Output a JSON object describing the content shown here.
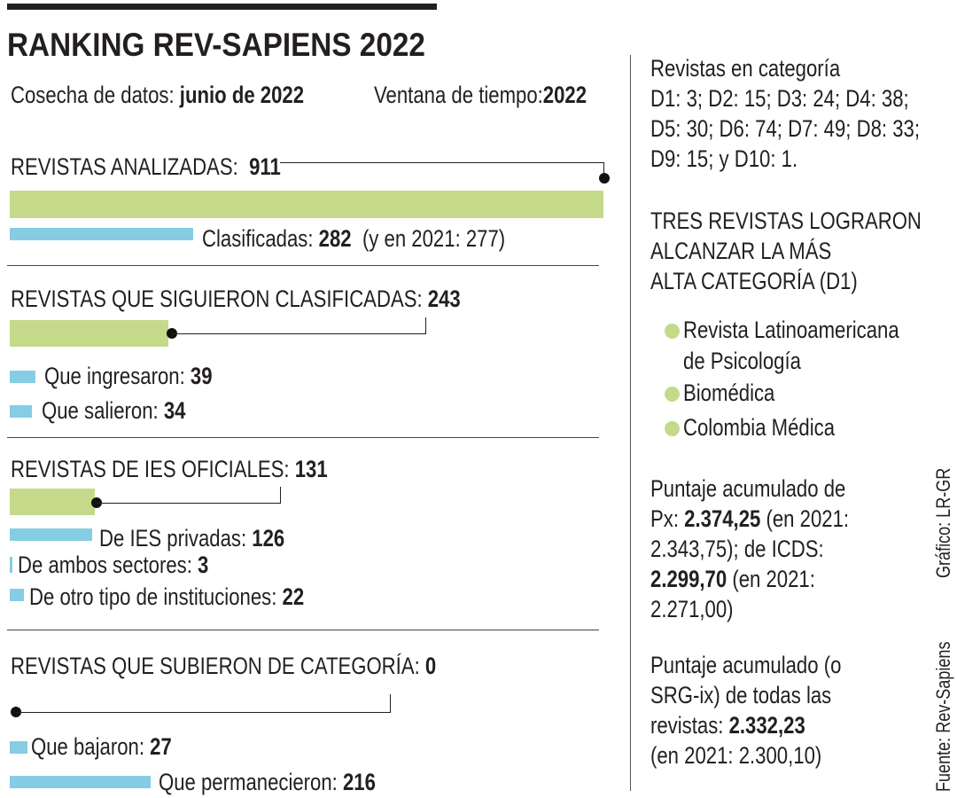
{
  "colors": {
    "green": "#c5d98a",
    "blue": "#85cde4",
    "text": "#231f20"
  },
  "title": "RANKING REV-SAPIENS 2022",
  "meta": {
    "cosecha_label": "Cosecha de datos:",
    "cosecha_value": "junio de 2022",
    "ventana_label": "Ventana de tiempo:",
    "ventana_value": "2022"
  },
  "chart_data": [
    {
      "type": "bar",
      "orientation": "horizontal",
      "series": [
        {
          "label": "REVISTAS ANALIZADAS:",
          "value": 911,
          "color": "green"
        },
        {
          "label": "Clasificadas:",
          "value": 282,
          "note": "(y en 2021: 277)",
          "color": "blue"
        }
      ]
    },
    {
      "type": "bar",
      "orientation": "horizontal",
      "series": [
        {
          "label": "REVISTAS QUE SIGUIERON CLASIFICADAS:",
          "value": 243,
          "color": "green"
        },
        {
          "label": "Que ingresaron:",
          "value": 39,
          "color": "blue"
        },
        {
          "label": "Que salieron:",
          "value": 34,
          "color": "blue"
        }
      ]
    },
    {
      "type": "bar",
      "orientation": "horizontal",
      "series": [
        {
          "label": "REVISTAS DE IES OFICIALES:",
          "value": 131,
          "color": "green"
        },
        {
          "label": "De IES privadas:",
          "value": 126,
          "color": "blue"
        },
        {
          "label": "De ambos sectores:",
          "value": 3,
          "color": "blue"
        },
        {
          "label": "De otro tipo de instituciones:",
          "value": 22,
          "color": "blue"
        }
      ]
    },
    {
      "type": "bar",
      "orientation": "horizontal",
      "series": [
        {
          "label": "REVISTAS QUE SUBIERON DE CATEGORÍA:",
          "value": 0,
          "color": "green"
        },
        {
          "label": "Que bajaron:",
          "value": 27,
          "color": "blue"
        },
        {
          "label": "Que permanecieron:",
          "value": 216,
          "color": "blue"
        }
      ]
    }
  ],
  "right": {
    "categorias": [
      "Revistas en categoría",
      "D1: 3; D2: 15; D3: 24; D4: 38;",
      "D5: 30; D6: 74; D7: 49; D8: 33;",
      "D9: 15; y D10: 1."
    ],
    "d1_heading": [
      "TRES REVISTAS LOGRARON",
      "ALCANZAR LA MÁS",
      "ALTA CATEGORÍA (D1)"
    ],
    "d1_list": [
      [
        "Revista Latinoamericana",
        "de Psicología"
      ],
      [
        "Biomédica"
      ],
      [
        "Colombia Médica"
      ]
    ],
    "px": {
      "l1": "Puntaje acumulado de",
      "l2a": "Px: ",
      "l2b": "2.374,25",
      "l2c": " (en 2021:",
      "l3": "2.343,75); de ICDS:",
      "l4a": "2.299,70",
      "l4b": " (en 2021:",
      "l5": "2.271,00)"
    },
    "srg": {
      "l1": "Puntaje acumulado (o",
      "l2": "SRG-ix) de todas las",
      "l3a": "revistas: ",
      "l3b": "2.332,23",
      "l4": "(en 2021: 2.300,10)"
    }
  },
  "credits": {
    "grafico": "Gráfico: LR-GR",
    "fuente": "Fuente: Rev-Sapiens"
  }
}
